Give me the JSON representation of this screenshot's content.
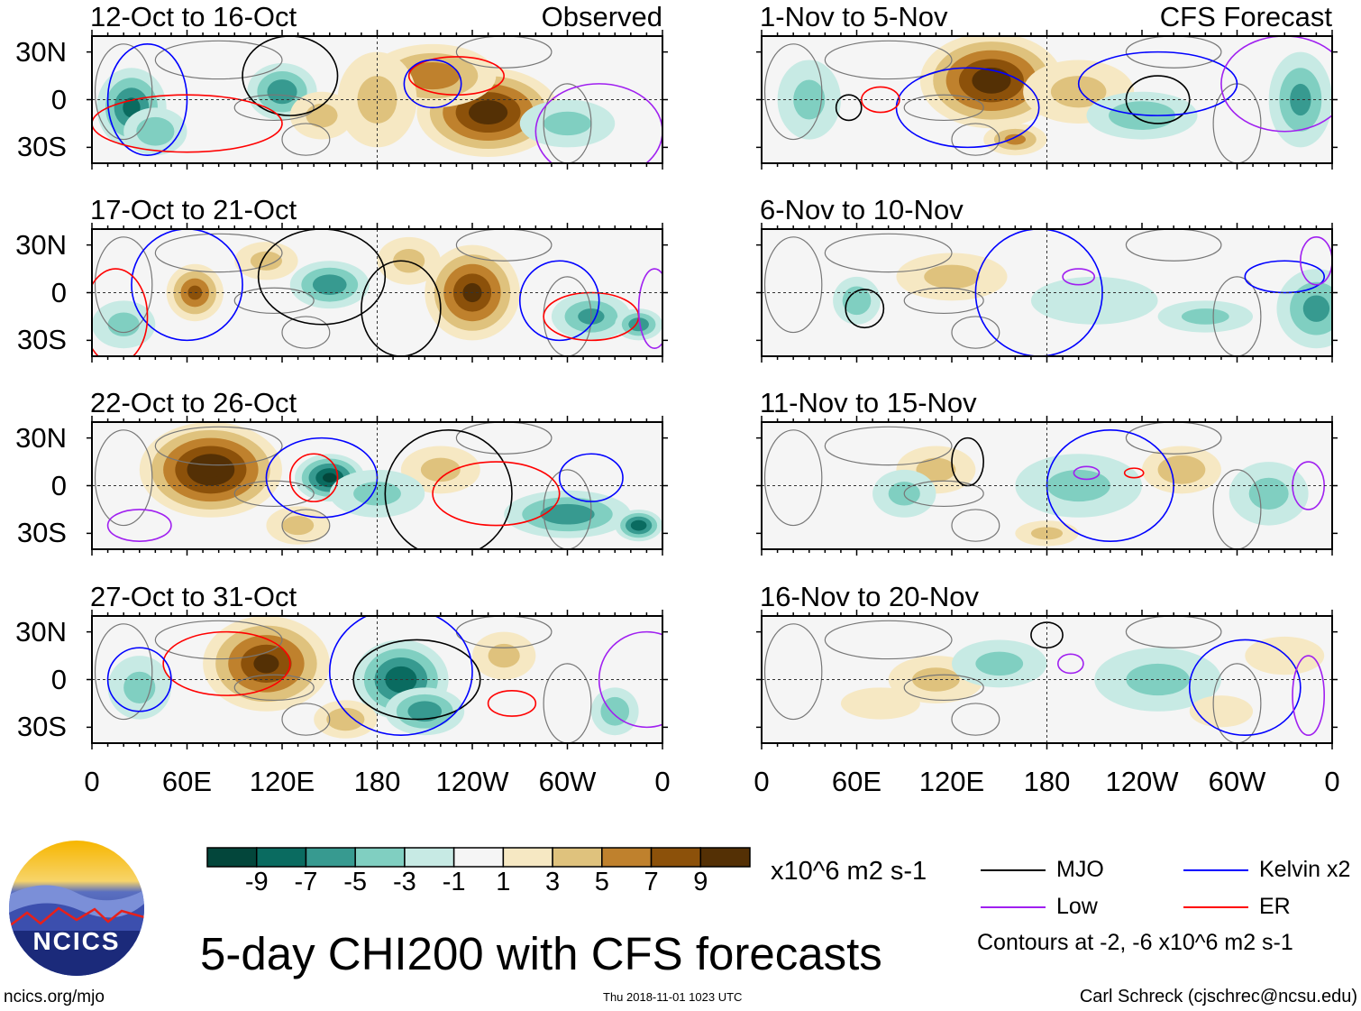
{
  "chart_data": {
    "type": "heatmap",
    "title": "5-day CHI200 with CFS forecasts",
    "units": "x10^6 m2 s-1",
    "lat_ticks": [
      "30N",
      "0",
      "30S"
    ],
    "lon_ticks": [
      "0",
      "60E",
      "120E",
      "180",
      "120W",
      "60W",
      "0"
    ],
    "colorbar": {
      "ticks": [
        "-9",
        "-7",
        "-5",
        "-3",
        "-1",
        "1",
        "3",
        "5",
        "7",
        "9"
      ],
      "colors": [
        "#03463b",
        "#0a6b60",
        "#379a90",
        "#80cfc1",
        "#c7eae4",
        "#f5f5f5",
        "#f6e8c3",
        "#dfc27d",
        "#bf812d",
        "#8c510a",
        "#543005"
      ]
    },
    "panels": [
      {
        "title": "12-Oct to 16-Oct",
        "tag": "Observed"
      },
      {
        "title": "17-Oct to 21-Oct",
        "tag": ""
      },
      {
        "title": "22-Oct to 26-Oct",
        "tag": ""
      },
      {
        "title": "27-Oct to 31-Oct",
        "tag": ""
      },
      {
        "title": "1-Nov to 5-Nov",
        "tag": "CFS Forecast"
      },
      {
        "title": "6-Nov to 10-Nov",
        "tag": ""
      },
      {
        "title": "11-Nov to 15-Nov",
        "tag": ""
      },
      {
        "title": "16-Nov to 20-Nov",
        "tag": ""
      }
    ],
    "legend": [
      {
        "label": "MJO",
        "color": "#000000"
      },
      {
        "label": "Kelvin x2",
        "color": "#0000ff"
      },
      {
        "label": "Low",
        "color": "#a020f0"
      },
      {
        "label": "ER",
        "color": "#ff0000"
      }
    ],
    "contour_note": "Contours at -2, -6 x10^6 m2 s-1"
  },
  "footer": {
    "logo_text": "NCICS",
    "url": "ncics.org/mjo",
    "timestamp": "Thu 2018-11-01 1023 UTC",
    "credit": "Carl Schreck (cjschrec@ncsu.edu)"
  }
}
